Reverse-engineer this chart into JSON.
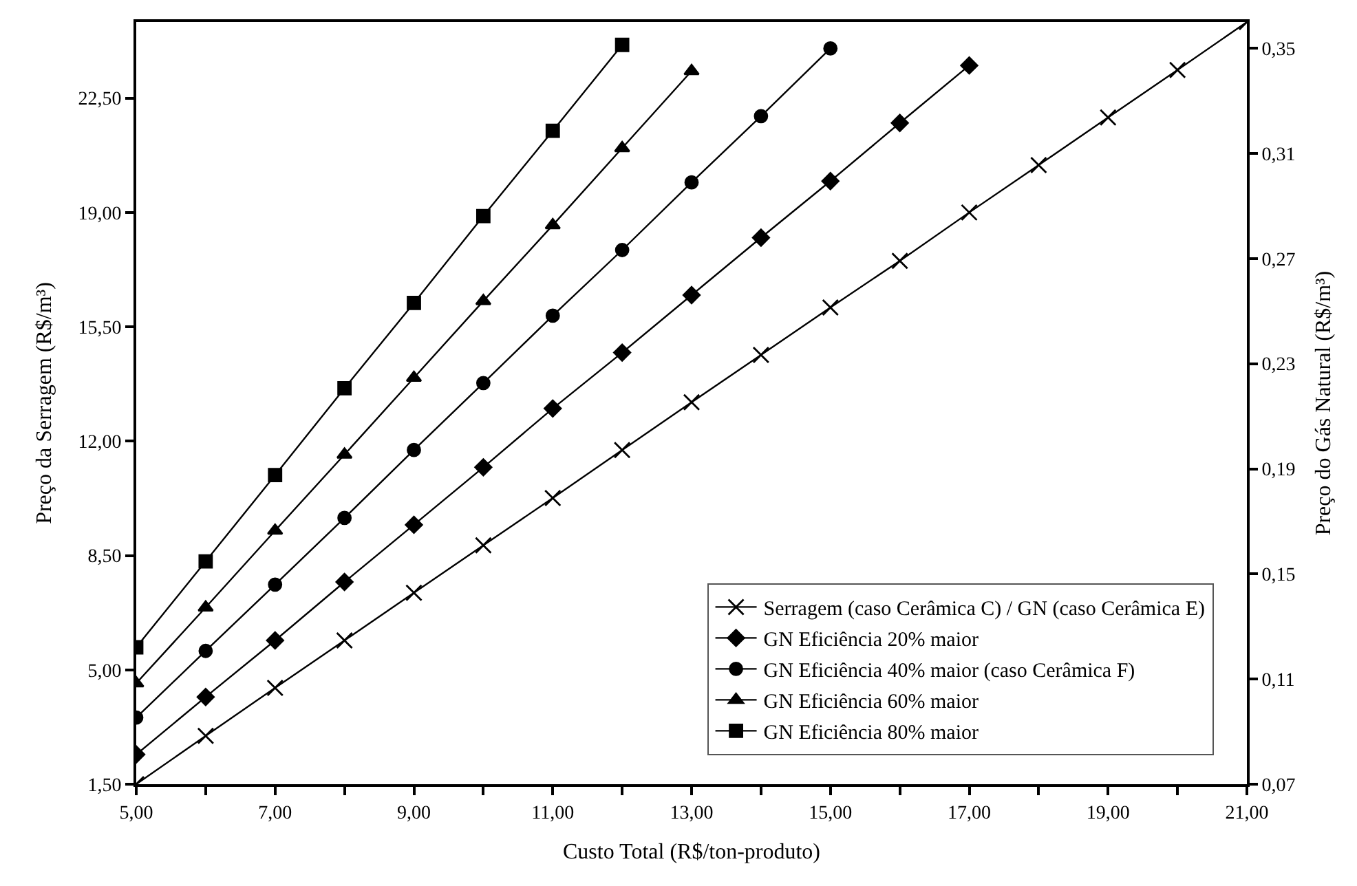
{
  "chart_data": {
    "type": "line",
    "xlabel": "Custo Total (R$/ton-produto)",
    "ylabel": "Preço da Serragem (R$/m³)",
    "y2label": "Preço do Gás Natural (R$/m³)",
    "xlim": [
      5,
      21
    ],
    "xticks": [
      {
        "value": 5,
        "label": "5,00"
      },
      {
        "value": 6,
        "label": null
      },
      {
        "value": 7,
        "label": "7,00"
      },
      {
        "value": 8,
        "label": null
      },
      {
        "value": 9,
        "label": "9,00"
      },
      {
        "value": 10,
        "label": null
      },
      {
        "value": 11,
        "label": "11,00"
      },
      {
        "value": 12,
        "label": null
      },
      {
        "value": 13,
        "label": "13,00"
      },
      {
        "value": 14,
        "label": null
      },
      {
        "value": 15,
        "label": "15,00"
      },
      {
        "value": 16,
        "label": null
      },
      {
        "value": 17,
        "label": "17,00"
      },
      {
        "value": 18,
        "label": null
      },
      {
        "value": 19,
        "label": "19,00"
      },
      {
        "value": 20,
        "label": null
      },
      {
        "value": 21,
        "label": "21,00"
      }
    ],
    "ylim": [
      1.5,
      24.83
    ],
    "yticks": [
      {
        "value": 1.5,
        "label": "1,50"
      },
      {
        "value": 5,
        "label": "5,00"
      },
      {
        "value": 8.5,
        "label": "8,50"
      },
      {
        "value": 12,
        "label": "12,00"
      },
      {
        "value": 15.5,
        "label": "15,50"
      },
      {
        "value": 19,
        "label": "19,00"
      },
      {
        "value": 22.5,
        "label": "22,50"
      }
    ],
    "y2lim": [
      0.07,
      0.36
    ],
    "y2ticks": [
      {
        "value": 0.07,
        "label": "0,07"
      },
      {
        "value": 0.11,
        "label": "0,11"
      },
      {
        "value": 0.15,
        "label": "0,15"
      },
      {
        "value": 0.19,
        "label": "0,19"
      },
      {
        "value": 0.23,
        "label": "0,23"
      },
      {
        "value": 0.27,
        "label": "0,27"
      },
      {
        "value": 0.31,
        "label": "0,31"
      },
      {
        "value": 0.35,
        "label": "0,35"
      }
    ],
    "legend": "bottom right",
    "line_style": "solid",
    "series": [
      {
        "name": "Serragem (caso Cerâmica C) / GN (caso Cerâmica E)",
        "color": "#000000",
        "marker": "cross",
        "x": [
          5,
          6,
          7,
          8,
          9,
          10,
          11,
          12,
          13,
          14,
          15,
          16,
          17,
          18,
          19,
          20,
          21
        ],
        "values": [
          1.5,
          2.98,
          4.45,
          5.9,
          7.36,
          8.81,
          10.26,
          11.73,
          13.19,
          14.64,
          16.09,
          17.52,
          19.0,
          20.45,
          21.91,
          23.36,
          24.83
        ]
      },
      {
        "name": "GN Eficiência 20% maior",
        "color": "#000000",
        "marker": "diamond",
        "x": [
          5,
          6,
          7,
          8,
          9,
          10,
          11,
          12,
          13,
          14,
          15,
          16,
          17
        ],
        "values": [
          2.41,
          4.17,
          5.9,
          7.69,
          9.44,
          11.2,
          13.0,
          14.71,
          16.47,
          18.23,
          19.96,
          21.74,
          23.5
        ]
      },
      {
        "name": "GN Eficiência 40% maior (caso Cerâmica F)",
        "color": "#000000",
        "marker": "circle",
        "x": [
          5,
          6,
          7,
          8,
          9,
          10,
          11,
          12,
          13,
          14,
          15
        ],
        "values": [
          3.54,
          5.58,
          7.61,
          9.65,
          11.73,
          13.78,
          15.84,
          17.85,
          19.92,
          21.95,
          24.02
        ]
      },
      {
        "name": "GN Eficiência 60% maior",
        "color": "#000000",
        "marker": "triangle",
        "x": [
          5,
          6,
          7,
          8,
          9,
          10,
          11,
          12,
          13
        ],
        "values": [
          4.59,
          6.91,
          9.26,
          11.59,
          13.94,
          16.29,
          18.61,
          20.97,
          23.33
        ]
      },
      {
        "name": "GN Eficiência 80% maior",
        "color": "#000000",
        "marker": "square",
        "x": [
          5,
          6,
          7,
          8,
          9,
          10,
          11,
          12
        ],
        "values": [
          5.69,
          8.32,
          10.96,
          13.62,
          16.23,
          18.89,
          21.5,
          24.13
        ]
      }
    ]
  }
}
